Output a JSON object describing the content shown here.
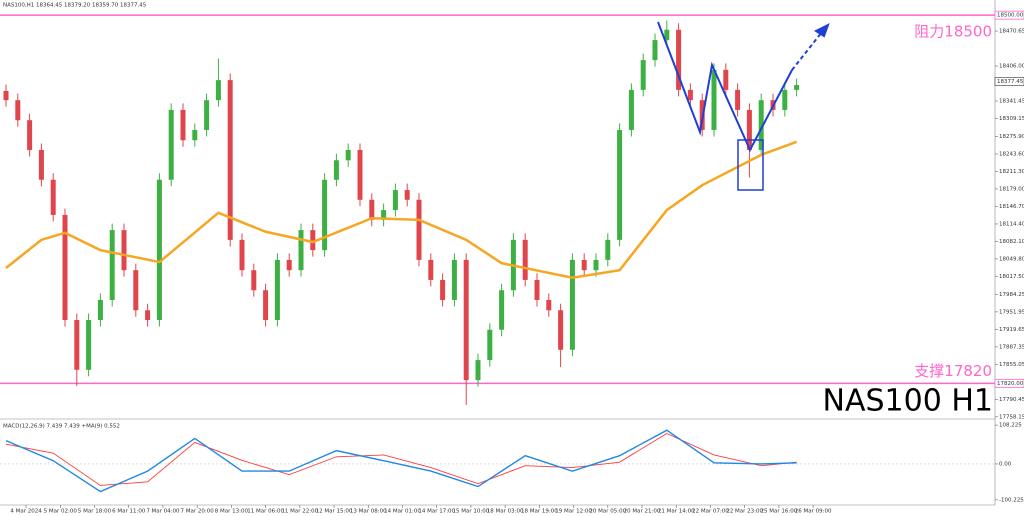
{
  "chart_data": {
    "type": "candlestick",
    "symbol_info": "NAS100,H1  18364.45 18379.20 18359.70 18377.45",
    "up_color": "#3cb043",
    "down_color": "#e0454c",
    "open": [
      18360,
      18343,
      18306,
      18251,
      18196,
      18131,
      17937,
      17845,
      17937,
      17974,
      18103,
      18029,
      17955,
      17937,
      18196,
      18325,
      18269,
      18288,
      18343,
      18380,
      18085,
      18029,
      17992,
      17937,
      18048,
      18029,
      18103,
      18066,
      18196,
      18232,
      18251,
      18159,
      18122,
      18140,
      18177,
      18159,
      18048,
      18011,
      17974,
      18048,
      17826,
      17863,
      17919,
      17992,
      18085,
      18011,
      17974,
      17955,
      17882,
      18048,
      18029,
      18048,
      18085,
      18288,
      18362,
      18417,
      18454,
      18473,
      18362,
      18343,
      18288,
      18399,
      18362,
      18325,
      18251,
      18343,
      18325,
      18362
    ],
    "high": [
      18372,
      18355,
      18318,
      18263,
      18208,
      18143,
      17949,
      17949,
      17986,
      18115,
      18115,
      18041,
      17967,
      18208,
      18337,
      18337,
      18300,
      18355,
      18420,
      18392,
      18097,
      18041,
      18004,
      18060,
      18060,
      18115,
      18115,
      18208,
      18244,
      18263,
      18263,
      18171,
      18152,
      18189,
      18189,
      18171,
      18060,
      18023,
      18060,
      18060,
      17875,
      17931,
      18004,
      18097,
      18097,
      18023,
      17986,
      17967,
      18060,
      18060,
      18060,
      18097,
      18300,
      18374,
      18429,
      18466,
      18490,
      18485,
      18374,
      18355,
      18411,
      18411,
      18374,
      18337,
      18355,
      18355,
      18374,
      18383
    ],
    "low": [
      18331,
      18294,
      18239,
      18184,
      18119,
      17925,
      17815,
      17833,
      17925,
      17962,
      18017,
      17943,
      17925,
      17925,
      18184,
      18257,
      18257,
      18276,
      18331,
      18073,
      18017,
      17980,
      17925,
      17925,
      18017,
      18017,
      18054,
      18054,
      18184,
      18220,
      18147,
      18110,
      18110,
      18128,
      18147,
      18036,
      17999,
      17962,
      17962,
      17780,
      17814,
      17851,
      17907,
      17980,
      17999,
      17962,
      17943,
      17850,
      17870,
      18017,
      18017,
      18036,
      18073,
      18276,
      18350,
      18405,
      18442,
      18350,
      18331,
      18276,
      18276,
      18350,
      18313,
      18200,
      18239,
      18313,
      18313,
      18350
    ],
    "close": [
      18343,
      18306,
      18251,
      18196,
      18131,
      17937,
      17845,
      17937,
      17974,
      18103,
      18029,
      17955,
      17937,
      18196,
      18325,
      18269,
      18288,
      18343,
      18380,
      18085,
      18029,
      17992,
      17937,
      18048,
      18029,
      18103,
      18066,
      18196,
      18232,
      18251,
      18159,
      18122,
      18140,
      18177,
      18159,
      18048,
      18011,
      17974,
      18048,
      17826,
      17863,
      17919,
      17992,
      18085,
      18011,
      17974,
      17955,
      17882,
      18048,
      18029,
      18048,
      18085,
      18288,
      18362,
      18417,
      18454,
      18473,
      18362,
      18343,
      18288,
      18399,
      18362,
      18325,
      18251,
      18343,
      18325,
      18362,
      18371
    ],
    "moving_average": {
      "color": "#f5a623",
      "x": [
        0,
        3,
        5,
        8,
        13,
        18,
        22,
        26,
        31,
        35,
        39,
        42,
        48,
        52,
        56,
        59,
        64,
        67
      ],
      "values": [
        18033,
        18085,
        18098,
        18066,
        18044,
        18135,
        18100,
        18081,
        18125,
        18122,
        18085,
        18042,
        18015,
        18029,
        18140,
        18186,
        18242,
        18266
      ]
    },
    "ylim": [
      17756,
      18528
    ],
    "yticks": [
      {
        "value": 18470.65,
        "label": "18470.65"
      },
      {
        "value": 18406,
        "label": "18406.00"
      },
      {
        "value": 18341.45,
        "label": "18341.45"
      },
      {
        "value": 18309.15,
        "label": "18309.15"
      },
      {
        "value": 18275.9,
        "label": "18275.90"
      },
      {
        "value": 18243.6,
        "label": "18243.60"
      },
      {
        "value": 18211.3,
        "label": "18211.30"
      },
      {
        "value": 18179,
        "label": "18179.00"
      },
      {
        "value": 18146.7,
        "label": "18146.70"
      },
      {
        "value": 18114.4,
        "label": "18114.40"
      },
      {
        "value": 18082.1,
        "label": "18082.10"
      },
      {
        "value": 18049.8,
        "label": "18049.80"
      },
      {
        "value": 18017.5,
        "label": "18017.50"
      },
      {
        "value": 17984.25,
        "label": "17984.25"
      },
      {
        "value": 17951.95,
        "label": "17951.95"
      },
      {
        "value": 17919.65,
        "label": "17919.65"
      },
      {
        "value": 17887.35,
        "label": "17887.35"
      },
      {
        "value": 17855.05,
        "label": "17855.05"
      },
      {
        "value": 17822.75,
        "label": "17822.75"
      },
      {
        "value": 17790.45,
        "label": "17790.45"
      },
      {
        "value": 17758.15,
        "label": "17758.15"
      }
    ],
    "xticks": [
      {
        "value": 1.7,
        "label": "4 Mar 2024"
      },
      {
        "value": 4.6,
        "label": "5 Mar 02:00"
      },
      {
        "value": 7.5,
        "label": "5 Mar 18:00"
      },
      {
        "value": 10.4,
        "label": "6 Mar 11:00"
      },
      {
        "value": 13.3,
        "label": "7 Mar 04:00"
      },
      {
        "value": 16.2,
        "label": "7 Mar 20:00"
      },
      {
        "value": 19.1,
        "label": "8 Mar 13:00"
      },
      {
        "value": 22,
        "label": "11 Mar 06:00"
      },
      {
        "value": 24.9,
        "label": "11 Mar 22:00"
      },
      {
        "value": 27.8,
        "label": "12 Mar 15:00"
      },
      {
        "value": 30.7,
        "label": "13 Mar 08:00"
      },
      {
        "value": 33.6,
        "label": "14 Mar 01:00"
      },
      {
        "value": 36.5,
        "label": "14 Mar 17:00"
      },
      {
        "value": 39.4,
        "label": "15 Mar 10:00"
      },
      {
        "value": 42.3,
        "label": "18 Mar 03:00"
      },
      {
        "value": 45.2,
        "label": "18 Mar 19:00"
      },
      {
        "value": 48.1,
        "label": "19 Mar 12:00"
      },
      {
        "value": 51,
        "label": "20 Mar 05:00"
      },
      {
        "value": 53.9,
        "label": "20 Mar 21:00"
      },
      {
        "value": 56.8,
        "label": "21 Mar 14:00"
      },
      {
        "value": 59.7,
        "label": "22 Mar 07:00"
      },
      {
        "value": 62.6,
        "label": "22 Mar 23:00"
      },
      {
        "value": 65.5,
        "label": "25 Mar 16:00"
      },
      {
        "value": 68.4,
        "label": "26 Mar 09:00"
      }
    ],
    "levels": [
      {
        "value": 18500,
        "label": "18500.00",
        "text": "阻力18500",
        "color": "#ff66cc"
      },
      {
        "value": 17820,
        "label": "17820.00",
        "text": "支撑17820",
        "color": "#ff66cc"
      }
    ],
    "current_price": {
      "value": 18377.45,
      "label": "18377.45"
    },
    "watermark": "NAS100 H1",
    "macd": {
      "label": "MACD(12,26,9) 7.439 7.439 +MA(9) 0.552",
      "x": [
        0,
        4,
        8,
        12,
        16,
        20,
        24,
        28,
        32,
        36,
        40,
        44,
        48,
        52,
        56,
        60,
        64,
        67
      ],
      "macd": {
        "color": "#1e88e5",
        "values": [
          65,
          9,
          -77,
          -20,
          71,
          -20,
          -20,
          37,
          9,
          -20,
          -63,
          23,
          -20,
          23,
          94,
          3,
          0,
          3
        ]
      },
      "signal": {
        "color": "#ff3b3b",
        "values": [
          55,
          30,
          -60,
          -50,
          60,
          10,
          -30,
          20,
          25,
          -10,
          -55,
          -5,
          -10,
          5,
          85,
          25,
          -5,
          5
        ]
      },
      "ylim": [
        -114.5,
        122.5
      ],
      "yticks": [
        108.225,
        {
          "value": 0,
          "label": "0.00"
        },
        -100.225
      ]
    }
  }
}
